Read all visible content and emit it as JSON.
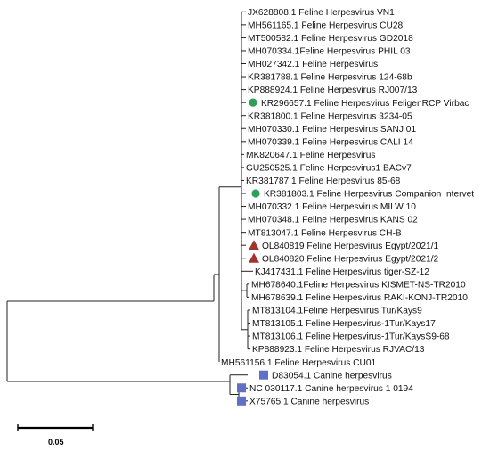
{
  "diagram": {
    "type": "phylogenetic-tree",
    "scale_label": "0.05",
    "marker_colors": {
      "circle": "#2f9e58",
      "triangle": "#a0342a",
      "square": "#6070c4"
    },
    "leaves": [
      {
        "label": "JX628808.1 Feline Herpesvirus VN1",
        "marker": ""
      },
      {
        "label": "MH561165.1 Feline Herpesvirus CU28",
        "marker": ""
      },
      {
        "label": "MT500582.1 Feline Herpesvirus GD2018",
        "marker": ""
      },
      {
        "label": "MH070334.1Feline Herpesvirus PHIL 03",
        "marker": ""
      },
      {
        "label": "MH027342.1 Feline Herpesvirus",
        "marker": ""
      },
      {
        "label": "KR381788.1 Feline Herpesvirus 124-68b",
        "marker": ""
      },
      {
        "label": "KP888924.1 Feline Herpesvirus RJ007/13",
        "marker": ""
      },
      {
        "label": "KR296657.1 Feline Herpesvirus FeligenRCP Virbac",
        "marker": "circle"
      },
      {
        "label": "KR381800.1 Feline Herpesvirus 3234-05",
        "marker": ""
      },
      {
        "label": "MH070330.1 Feline Herpesvirus SANJ 01",
        "marker": ""
      },
      {
        "label": "MH070339.1 Feline Herpesvirus CALI 14",
        "marker": ""
      },
      {
        "label": "MK820647.1 Feline Herpesvirus",
        "marker": ""
      },
      {
        "label": "GU250525.1 Feline Herpesvirus1 BACv7",
        "marker": ""
      },
      {
        "label": "KR381787.1 Feline Herpesvirus 85-68",
        "marker": ""
      },
      {
        "label": "KR381803.1 Feline Herpesvirus Companion Intervet",
        "marker": "circle"
      },
      {
        "label": "MH070332.1 Feline Herpesvirus MILW 10",
        "marker": ""
      },
      {
        "label": "MH070348.1 Feline Herpesvirus KANS 02",
        "marker": ""
      },
      {
        "label": "MT813047.1 Feline Herpesvirus CH-B",
        "marker": ""
      },
      {
        "label": "OL840819 Feline Herpesvirus Egypt/2021/1",
        "marker": "triangle"
      },
      {
        "label": "OL840820 Feline Herpesvirus Egypt/2021/2",
        "marker": "triangle"
      },
      {
        "label": "KJ417431.1 Feline Herpesvirus tiger-SZ-12",
        "marker": ""
      },
      {
        "label": "MH678640.1Feline Herpesvirus KISMET-NS-TR2010",
        "marker": ""
      },
      {
        "label": "MH678639.1 Feline Herpesvirus RAKI-KONJ-TR2010",
        "marker": ""
      },
      {
        "label": "MT813104.1Feline Herpesvirus Tur/Kays9",
        "marker": ""
      },
      {
        "label": "MT813105.1 Feline Herpesvirus-1Tur/Kays17",
        "marker": ""
      },
      {
        "label": "MT813106.1 Feline Herpesvirus-1Tur/KaysS9-68",
        "marker": ""
      },
      {
        "label": "KP888923.1 Feline Herpesvirus RJVAC/13",
        "marker": ""
      },
      {
        "label": "MH561156.1 Feline Herpesvirus CU01",
        "marker": ""
      },
      {
        "label": "D83054.1 Canine herpesvirus",
        "marker": "square"
      },
      {
        "label": "NC 030117.1 Canine herpesvirus 1 0194",
        "marker": "square"
      },
      {
        "label": "X75765.1 Canine herpesvirus",
        "marker": "square"
      }
    ]
  }
}
